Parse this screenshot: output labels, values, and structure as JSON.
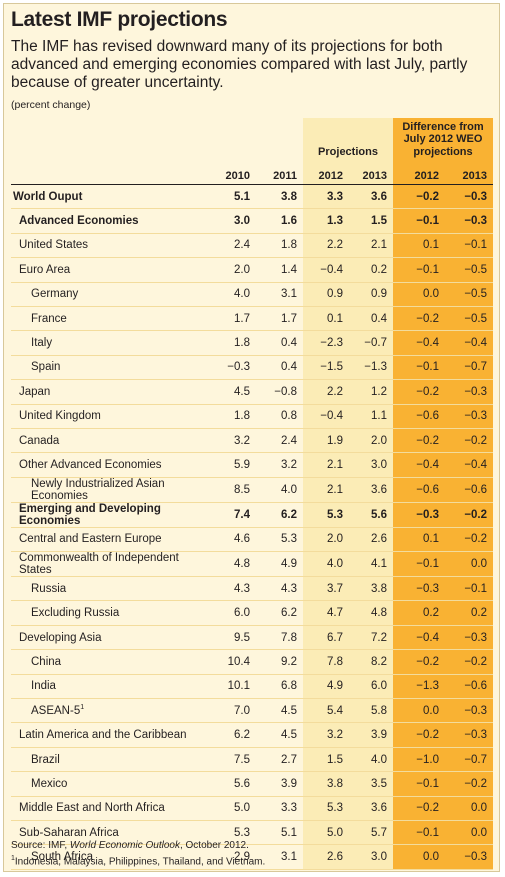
{
  "title": "Latest IMF projections",
  "subtitle": "The IMF has revised downward many of its projections for both advanced and emerging economies compared with last July, partly because of greater uncertainty.",
  "unit_note": "(percent change)",
  "headers": {
    "projections": "Projections",
    "difference": "Difference from July 2012 WEO projections",
    "years": [
      "2010",
      "2011",
      "2012",
      "2013",
      "2012",
      "2013"
    ]
  },
  "rows": [
    {
      "label": "World Ouput",
      "level": 0,
      "bold": true,
      "values": [
        "5.1",
        "3.8",
        "3.3",
        "3.6",
        "−0.2",
        "−0.3"
      ]
    },
    {
      "label": "Advanced Economies",
      "level": 1,
      "bold": true,
      "values": [
        "3.0",
        "1.6",
        "1.3",
        "1.5",
        "−0.1",
        "−0.3"
      ]
    },
    {
      "label": "United States",
      "level": 1,
      "values": [
        "2.4",
        "1.8",
        "2.2",
        "2.1",
        "0.1",
        "−0.1"
      ]
    },
    {
      "label": "Euro Area",
      "level": 1,
      "values": [
        "2.0",
        "1.4",
        "−0.4",
        "0.2",
        "−0.1",
        "−0.5"
      ]
    },
    {
      "label": "Germany",
      "level": 2,
      "values": [
        "4.0",
        "3.1",
        "0.9",
        "0.9",
        "0.0",
        "−0.5"
      ]
    },
    {
      "label": "France",
      "level": 2,
      "values": [
        "1.7",
        "1.7",
        "0.1",
        "0.4",
        "−0.2",
        "−0.5"
      ]
    },
    {
      "label": "Italy",
      "level": 2,
      "values": [
        "1.8",
        "0.4",
        "−2.3",
        "−0.7",
        "−0.4",
        "−0.4"
      ]
    },
    {
      "label": "Spain",
      "level": 2,
      "values": [
        "−0.3",
        "0.4",
        "−1.5",
        "−1.3",
        "−0.1",
        "−0.7"
      ]
    },
    {
      "label": "Japan",
      "level": 1,
      "values": [
        "4.5",
        "−0.8",
        "2.2",
        "1.2",
        "−0.2",
        "−0.3"
      ]
    },
    {
      "label": "United Kingdom",
      "level": 1,
      "values": [
        "1.8",
        "0.8",
        "−0.4",
        "1.1",
        "−0.6",
        "−0.3"
      ]
    },
    {
      "label": "Canada",
      "level": 1,
      "values": [
        "3.2",
        "2.4",
        "1.9",
        "2.0",
        "−0.2",
        "−0.2"
      ]
    },
    {
      "label": "Other Advanced Economies",
      "level": 1,
      "values": [
        "5.9",
        "3.2",
        "2.1",
        "3.0",
        "−0.4",
        "−0.4"
      ]
    },
    {
      "label": "Newly Industrialized Asian Economies",
      "level": 2,
      "values": [
        "8.5",
        "4.0",
        "2.1",
        "3.6",
        "−0.6",
        "−0.6"
      ]
    },
    {
      "label": "Emerging and Developing Economies",
      "level": 1,
      "bold": true,
      "values": [
        "7.4",
        "6.2",
        "5.3",
        "5.6",
        "−0.3",
        "−0.2"
      ]
    },
    {
      "label": "Central and Eastern Europe",
      "level": 1,
      "values": [
        "4.6",
        "5.3",
        "2.0",
        "2.6",
        "0.1",
        "−0.2"
      ]
    },
    {
      "label": "Commonwealth of Independent States",
      "level": 1,
      "values": [
        "4.8",
        "4.9",
        "4.0",
        "4.1",
        "−0.1",
        "0.0"
      ]
    },
    {
      "label": "Russia",
      "level": 2,
      "values": [
        "4.3",
        "4.3",
        "3.7",
        "3.8",
        "−0.3",
        "−0.1"
      ]
    },
    {
      "label": "Excluding Russia",
      "level": 2,
      "values": [
        "6.0",
        "6.2",
        "4.7",
        "4.8",
        "0.2",
        "0.2"
      ]
    },
    {
      "label": "Developing Asia",
      "level": 1,
      "values": [
        "9.5",
        "7.8",
        "6.7",
        "7.2",
        "−0.4",
        "−0.3"
      ]
    },
    {
      "label": "China",
      "level": 2,
      "values": [
        "10.4",
        "9.2",
        "7.8",
        "8.2",
        "−0.2",
        "−0.2"
      ]
    },
    {
      "label": "India",
      "level": 2,
      "values": [
        "10.1",
        "6.8",
        "4.9",
        "6.0",
        "−1.3",
        "−0.6"
      ]
    },
    {
      "label": "ASEAN-5",
      "sup": "1",
      "level": 2,
      "values": [
        "7.0",
        "4.5",
        "5.4",
        "5.8",
        "0.0",
        "−0.3"
      ]
    },
    {
      "label": "Latin America and the Caribbean",
      "level": 1,
      "values": [
        "6.2",
        "4.5",
        "3.2",
        "3.9",
        "−0.2",
        "−0.3"
      ]
    },
    {
      "label": "Brazil",
      "level": 2,
      "values": [
        "7.5",
        "2.7",
        "1.5",
        "4.0",
        "−1.0",
        "−0.7"
      ]
    },
    {
      "label": "Mexico",
      "level": 2,
      "values": [
        "5.6",
        "3.9",
        "3.8",
        "3.5",
        "−0.1",
        "−0.2"
      ]
    },
    {
      "label": "Middle East and North Africa",
      "level": 1,
      "values": [
        "5.0",
        "3.3",
        "5.3",
        "3.6",
        "−0.2",
        "0.0"
      ]
    },
    {
      "label": "Sub-Saharan Africa",
      "level": 1,
      "values": [
        "5.3",
        "5.1",
        "5.0",
        "5.7",
        "−0.1",
        "0.0"
      ]
    },
    {
      "label": "South Africa",
      "level": 2,
      "values": [
        "2.9",
        "3.1",
        "2.6",
        "3.0",
        "0.0",
        "−0.3"
      ]
    }
  ],
  "source": {
    "prefix": "Source: IMF, ",
    "title": "World Economic Outlook",
    "suffix": ", October 2012."
  },
  "footnote": {
    "marker": "1",
    "text": "Indonesia, Malaysia, Philippines, Thailand, and Vietnam."
  }
}
